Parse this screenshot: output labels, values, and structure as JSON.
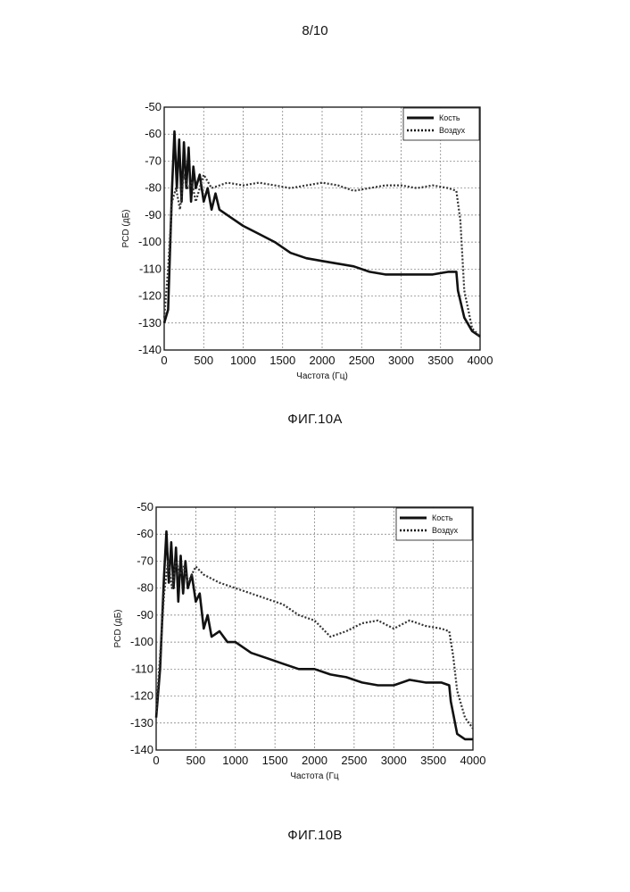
{
  "page": {
    "number": "8/10"
  },
  "figures": [
    {
      "caption": "ФИГ.10A"
    },
    {
      "caption": "ФИГ.10B"
    }
  ],
  "chart_data": [
    {
      "type": "line",
      "title": "",
      "xlabel": "Частота (Гц)",
      "ylabel": "PCD (дБ)",
      "xlim": [
        0,
        4000
      ],
      "ylim": [
        -140,
        -50
      ],
      "xticks": [
        0,
        500,
        1000,
        1500,
        2000,
        2500,
        3000,
        3500,
        4000
      ],
      "yticks": [
        -50,
        -60,
        -70,
        -80,
        -90,
        -100,
        -110,
        -120,
        -130,
        -140
      ],
      "grid": true,
      "legend": "top-right",
      "series": [
        {
          "name": "Кость",
          "style": "solid",
          "x": [
            0,
            50,
            100,
            130,
            160,
            190,
            220,
            250,
            280,
            310,
            340,
            370,
            400,
            450,
            500,
            550,
            600,
            650,
            700,
            800,
            900,
            1000,
            1200,
            1400,
            1600,
            1800,
            2000,
            2200,
            2400,
            2600,
            2800,
            3000,
            3200,
            3400,
            3600,
            3700,
            3720,
            3800,
            3900,
            4000
          ],
          "y": [
            -130,
            -125,
            -80,
            -59,
            -80,
            -62,
            -85,
            -63,
            -80,
            -65,
            -85,
            -72,
            -80,
            -75,
            -85,
            -80,
            -88,
            -82,
            -88,
            -90,
            -92,
            -94,
            -97,
            -100,
            -104,
            -106,
            -107,
            -108,
            -109,
            -111,
            -112,
            -112,
            -112,
            -112,
            -111,
            -111,
            -118,
            -128,
            -133,
            -135
          ]
        },
        {
          "name": "Воздух",
          "style": "dashed",
          "x": [
            0,
            50,
            100,
            150,
            200,
            250,
            300,
            350,
            400,
            500,
            600,
            800,
            1000,
            1200,
            1400,
            1600,
            1800,
            2000,
            2200,
            2400,
            2600,
            2800,
            3000,
            3200,
            3400,
            3600,
            3700,
            3750,
            3800,
            3900,
            4000
          ],
          "y": [
            -128,
            -110,
            -85,
            -80,
            -88,
            -75,
            -80,
            -78,
            -85,
            -75,
            -80,
            -78,
            -79,
            -78,
            -79,
            -80,
            -79,
            -78,
            -79,
            -81,
            -80,
            -79,
            -79,
            -80,
            -79,
            -80,
            -81,
            -92,
            -118,
            -132,
            -135
          ]
        }
      ]
    },
    {
      "type": "line",
      "title": "",
      "xlabel": "Частота (Гц",
      "ylabel": "PCD (дБ)",
      "xlim": [
        0,
        4000
      ],
      "ylim": [
        -140,
        -50
      ],
      "xticks": [
        0,
        500,
        1000,
        1500,
        2000,
        2500,
        3000,
        3500,
        4000
      ],
      "yticks": [
        -50,
        -60,
        -70,
        -80,
        -90,
        -100,
        -110,
        -120,
        -130,
        -140
      ],
      "grid": true,
      "legend": "top-right",
      "series": [
        {
          "name": "Кость",
          "style": "solid",
          "x": [
            0,
            50,
            100,
            130,
            160,
            190,
            220,
            250,
            280,
            310,
            340,
            370,
            400,
            450,
            500,
            550,
            600,
            650,
            700,
            800,
            900,
            1000,
            1200,
            1400,
            1600,
            1800,
            2000,
            2200,
            2400,
            2600,
            2800,
            3000,
            3200,
            3400,
            3600,
            3700,
            3720,
            3800,
            3900,
            4000
          ],
          "y": [
            -128,
            -110,
            -75,
            -59,
            -78,
            -63,
            -80,
            -65,
            -85,
            -68,
            -82,
            -70,
            -80,
            -75,
            -85,
            -82,
            -95,
            -90,
            -98,
            -96,
            -100,
            -100,
            -104,
            -106,
            -108,
            -110,
            -110,
            -112,
            -113,
            -115,
            -116,
            -116,
            -114,
            -115,
            -115,
            -116,
            -122,
            -134,
            -136,
            -136
          ]
        },
        {
          "name": "Воздух",
          "style": "dashed",
          "x": [
            0,
            50,
            100,
            150,
            200,
            250,
            300,
            350,
            400,
            500,
            600,
            800,
            1000,
            1200,
            1400,
            1600,
            1800,
            2000,
            2200,
            2400,
            2600,
            2800,
            3000,
            3200,
            3400,
            3600,
            3700,
            3750,
            3800,
            3900,
            4000
          ],
          "y": [
            -126,
            -105,
            -82,
            -70,
            -80,
            -70,
            -75,
            -72,
            -78,
            -72,
            -75,
            -78,
            -80,
            -82,
            -84,
            -86,
            -90,
            -92,
            -98,
            -96,
            -93,
            -92,
            -95,
            -92,
            -94,
            -95,
            -96,
            -105,
            -118,
            -128,
            -132
          ]
        }
      ]
    }
  ]
}
